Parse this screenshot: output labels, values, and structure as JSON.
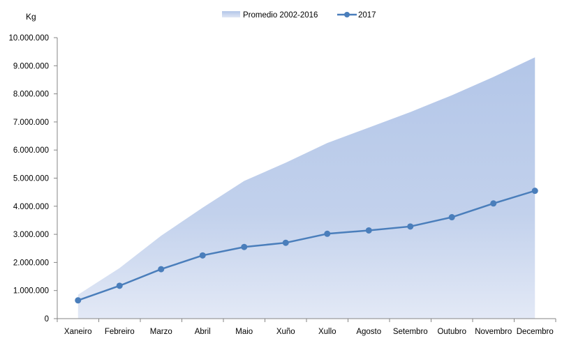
{
  "chart_data": {
    "type": "area",
    "title": "",
    "ylabel": "Kg",
    "xlabel": "",
    "categories": [
      "Xaneiro",
      "Febreiro",
      "Marzo",
      "Abril",
      "Maio",
      "Xuño",
      "Xullo",
      "Agosto",
      "Setembro",
      "Outubro",
      "Novembro",
      "Decembro"
    ],
    "ylim": [
      0,
      10000000
    ],
    "yticks": [
      0,
      1000000,
      2000000,
      3000000,
      4000000,
      5000000,
      6000000,
      7000000,
      8000000,
      9000000,
      10000000
    ],
    "ytick_labels": [
      "0",
      "1.000.000",
      "2.000.000",
      "3.000.000",
      "4.000.000",
      "5.000.000",
      "6.000.000",
      "7.000.000",
      "8.000.000",
      "9.000.000",
      "10.000.000"
    ],
    "grid": false,
    "legend_position": "top-center",
    "series": [
      {
        "name": "Promedio 2002-2016",
        "type": "area",
        "color": "#b4c7e7",
        "values": [
          850000,
          1800000,
          2950000,
          3950000,
          4900000,
          5550000,
          6250000,
          6800000,
          7350000,
          7950000,
          8600000,
          9300000
        ]
      },
      {
        "name": "2017",
        "type": "line",
        "color": "#4a7ebb",
        "values": [
          650000,
          1170000,
          1760000,
          2250000,
          2550000,
          2700000,
          3020000,
          3140000,
          3280000,
          3610000,
          4100000,
          4550000
        ]
      }
    ]
  }
}
